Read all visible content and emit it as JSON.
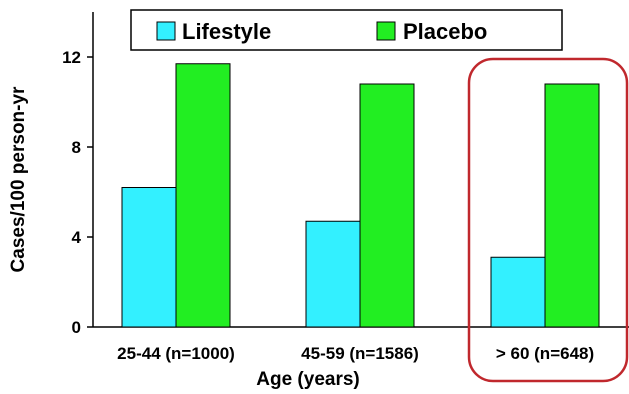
{
  "chart_data": {
    "type": "bar",
    "categories": [
      "25-44 (n=1000)",
      "45-59 (n=1586)",
      "> 60 (n=648)"
    ],
    "series": [
      {
        "name": "Lifestyle",
        "color": "#33f0ff",
        "values": [
          6.2,
          4.7,
          3.1
        ]
      },
      {
        "name": "Placebo",
        "color": "#22ee22",
        "values": [
          11.7,
          10.8,
          10.8
        ]
      }
    ],
    "xlabel": "Age (years)",
    "ylabel": "Cases/100 person-yr",
    "ylim": [
      0,
      14
    ],
    "yticks": [
      0,
      4,
      8,
      12
    ],
    "grid": false,
    "legend_position": "top",
    "highlight": {
      "category": "> 60 (n=648)",
      "color": "#c0282d"
    }
  }
}
